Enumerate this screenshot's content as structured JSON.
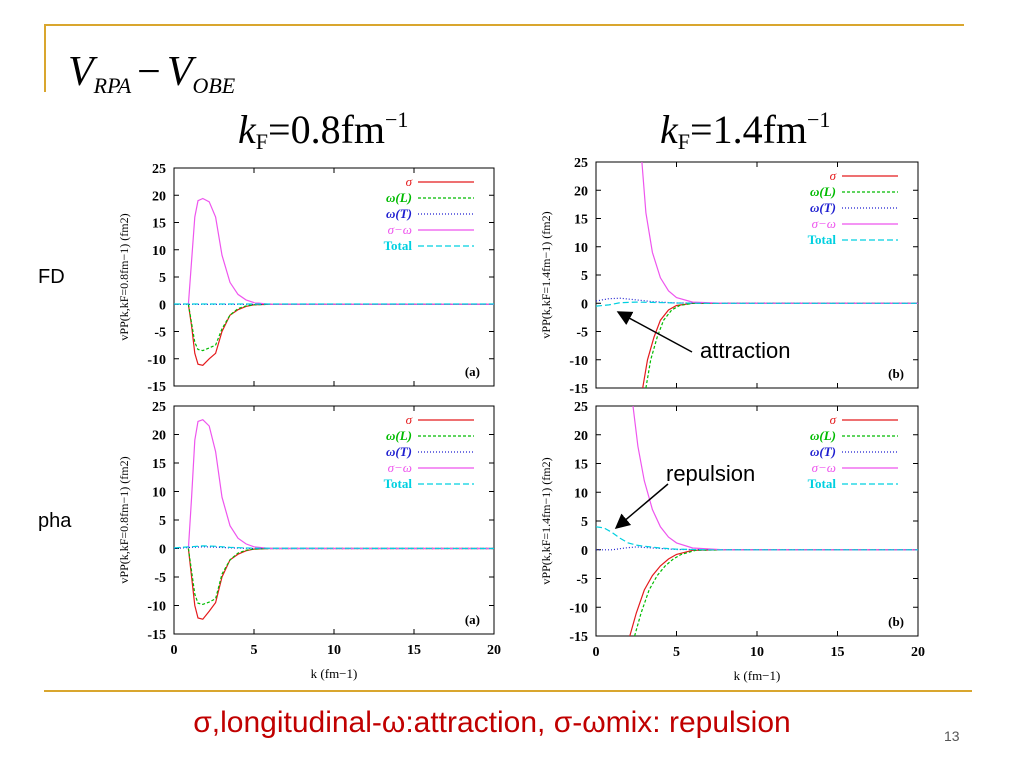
{
  "slide": {
    "title_main_1": "V",
    "title_sub_1": "RPA",
    "title_minus": "−",
    "title_main_2": "V",
    "title_sub_2": "OBE",
    "col_headers": [
      {
        "k": "k",
        "sub": "F",
        "value": "=0.8fm",
        "sup": "−1"
      },
      {
        "k": "k",
        "sub": "F",
        "value": "=1.4fm",
        "sup": "−1"
      }
    ],
    "row_labels": [
      "FD",
      "pha"
    ],
    "annotation_attraction": "attraction",
    "annotation_repulsion": "repulsion",
    "footer": "σ,longitudinal-ω:attraction, σ-ωmix: repulsion",
    "page_number": "13"
  },
  "chart_data": [
    {
      "type": "line",
      "panel_label": "(a)",
      "ylabel": "vPP(k,kF=0.8fm−1) (fm2)",
      "xlabel": "k (fm−1)",
      "xlim": [
        0,
        20
      ],
      "ylim": [
        -15,
        25
      ],
      "yticks": [
        "25",
        "20",
        "15",
        "10",
        "5",
        "0",
        "-5",
        "-10",
        "-15"
      ],
      "xticks": [
        "0",
        "5",
        "10",
        "15",
        "20"
      ],
      "series": [
        {
          "name": "σ",
          "color": "#e41a1c",
          "dash": "",
          "x": [
            0.9,
            1.1,
            1.3,
            1.5,
            1.8,
            2.2,
            2.6,
            3,
            3.5,
            4,
            4.5,
            5,
            6,
            8,
            12,
            20
          ],
          "y": [
            0,
            -4,
            -9,
            -11,
            -11.2,
            -10,
            -9,
            -5,
            -2,
            -1,
            -0.4,
            -0.1,
            0,
            0,
            0,
            0
          ]
        },
        {
          "name": "ω(L)",
          "color": "#00bb00",
          "dash": "3,2",
          "x": [
            0.9,
            1.1,
            1.3,
            1.5,
            1.8,
            2.2,
            2.6,
            3,
            3.5,
            4,
            4.5,
            5,
            6,
            8,
            12,
            20
          ],
          "y": [
            0,
            -3.5,
            -7,
            -8.3,
            -8.5,
            -8,
            -7.5,
            -4.5,
            -2,
            -0.8,
            -0.3,
            -0.1,
            0,
            0,
            0,
            0
          ]
        },
        {
          "name": "ω(T)",
          "color": "#1f1fd0",
          "dash": "1,2",
          "x": [
            0,
            20
          ],
          "y": [
            0,
            0
          ]
        },
        {
          "name": "σ−ω",
          "color": "#ee55ee",
          "dash": "",
          "x": [
            0.9,
            1.1,
            1.3,
            1.5,
            1.8,
            2.2,
            2.6,
            3,
            3.5,
            4,
            4.5,
            5,
            6,
            8,
            12,
            20
          ],
          "y": [
            0,
            8,
            16,
            19,
            19.4,
            18.8,
            16,
            9,
            4,
            1.8,
            0.8,
            0.3,
            0,
            0,
            0,
            0
          ]
        },
        {
          "name": "Total",
          "color": "#00d0e0",
          "dash": "6,3",
          "x": [
            0,
            20
          ],
          "y": [
            0.05,
            0.05
          ]
        }
      ]
    },
    {
      "type": "line",
      "panel_label": "(b)",
      "ylabel": "vPP(k,kF=1.4fm−1) (fm2)",
      "xlabel": "k (fm−1)",
      "xlim": [
        0,
        20
      ],
      "ylim": [
        -15,
        25
      ],
      "yticks": [
        "25",
        "20",
        "15",
        "10",
        "5",
        "0",
        "-5",
        "-10",
        "-15"
      ],
      "xticks": [
        "0",
        "5",
        "10",
        "15",
        "20"
      ],
      "series": [
        {
          "name": "σ",
          "color": "#e41a1c",
          "dash": "",
          "x": [
            2.9,
            3.2,
            3.6,
            4,
            4.5,
            5,
            6,
            8,
            12,
            20
          ],
          "y": [
            -15,
            -10,
            -6,
            -3,
            -1.2,
            -0.4,
            0,
            0,
            0,
            0
          ]
        },
        {
          "name": "ω(L)",
          "color": "#00bb00",
          "dash": "3,2",
          "x": [
            3.1,
            3.4,
            3.8,
            4.2,
            4.7,
            5.2,
            6,
            8,
            12,
            20
          ],
          "y": [
            -15,
            -10,
            -6,
            -3,
            -1.2,
            -0.4,
            0,
            0,
            0,
            0
          ]
        },
        {
          "name": "ω(T)",
          "color": "#1f1fd0",
          "dash": "1,2",
          "x": [
            0,
            0.8,
            1.5,
            2.5,
            3.5,
            5,
            20
          ],
          "y": [
            0.4,
            0.8,
            0.9,
            0.6,
            0.3,
            0.05,
            0
          ]
        },
        {
          "name": "σ−ω",
          "color": "#ee55ee",
          "dash": "",
          "x": [
            2.85,
            3.1,
            3.5,
            4,
            4.5,
            5,
            6,
            8,
            12,
            20
          ],
          "y": [
            25,
            16,
            9,
            4.5,
            2.2,
            1,
            0.2,
            0,
            0,
            0
          ]
        },
        {
          "name": "Total",
          "color": "#00d0e0",
          "dash": "6,3",
          "x": [
            0,
            0.8,
            1.5,
            2.5,
            3.5,
            5,
            7,
            20
          ],
          "y": [
            -0.5,
            -0.3,
            0.1,
            0.2,
            0.15,
            0.05,
            0,
            0
          ]
        }
      ]
    },
    {
      "type": "line",
      "panel_label": "(a)",
      "ylabel": "vPP(k,kF=0.8fm−1) (fm2)",
      "xlabel": "k (fm−1)",
      "xlim": [
        0,
        20
      ],
      "ylim": [
        -15,
        25
      ],
      "yticks": [
        "25",
        "20",
        "15",
        "10",
        "5",
        "0",
        "-5",
        "-10",
        "-15"
      ],
      "xticks": [
        "0",
        "5",
        "10",
        "15",
        "20"
      ],
      "series": [
        {
          "name": "σ",
          "color": "#e41a1c",
          "dash": "",
          "x": [
            0.9,
            1.1,
            1.3,
            1.5,
            1.8,
            2.2,
            2.6,
            3,
            3.5,
            4,
            4.5,
            5,
            6,
            8,
            12,
            20
          ],
          "y": [
            0,
            -5,
            -10,
            -12.2,
            -12.4,
            -11,
            -9.5,
            -5,
            -2,
            -1,
            -0.4,
            -0.1,
            0,
            0,
            0,
            0
          ]
        },
        {
          "name": "ω(L)",
          "color": "#00bb00",
          "dash": "3,2",
          "x": [
            0.9,
            1.1,
            1.3,
            1.5,
            1.8,
            2.2,
            2.6,
            3,
            3.5,
            4,
            4.5,
            5,
            6,
            8,
            12,
            20
          ],
          "y": [
            0,
            -4,
            -8,
            -9.6,
            -9.8,
            -9.4,
            -8.8,
            -4.5,
            -2,
            -0.8,
            -0.3,
            -0.1,
            0,
            0,
            0,
            0
          ]
        },
        {
          "name": "ω(T)",
          "color": "#1f1fd0",
          "dash": "1,2",
          "x": [
            0,
            1,
            1.8,
            2.5,
            3.5,
            5,
            20
          ],
          "y": [
            0,
            0.2,
            0.3,
            0.25,
            0.1,
            0,
            0
          ]
        },
        {
          "name": "σ−ω",
          "color": "#ee55ee",
          "dash": "",
          "x": [
            0.9,
            1.1,
            1.3,
            1.5,
            1.8,
            2.2,
            2.6,
            3,
            3.5,
            4,
            4.5,
            5,
            6,
            8,
            12,
            20
          ],
          "y": [
            0,
            9,
            19,
            22.3,
            22.6,
            21.5,
            17,
            9,
            4,
            1.8,
            0.8,
            0.3,
            0,
            0,
            0,
            0
          ]
        },
        {
          "name": "Total",
          "color": "#00d0e0",
          "dash": "6,3",
          "x": [
            0,
            1,
            1.8,
            2.5,
            3.5,
            5,
            20
          ],
          "y": [
            0.1,
            0.3,
            0.45,
            0.4,
            0.2,
            0.05,
            0
          ]
        }
      ]
    },
    {
      "type": "line",
      "panel_label": "(b)",
      "ylabel": "vPP(k,kF=1.4fm−1) (fm2)",
      "xlabel": "k (fm−1)",
      "xlim": [
        0,
        20
      ],
      "ylim": [
        -15,
        25
      ],
      "yticks": [
        "25",
        "20",
        "15",
        "10",
        "5",
        "0",
        "-5",
        "-10",
        "-15"
      ],
      "xticks": [
        "0",
        "5",
        "10",
        "15",
        "20"
      ],
      "series": [
        {
          "name": "σ",
          "color": "#e41a1c",
          "dash": "",
          "x": [
            2.1,
            2.5,
            3,
            3.5,
            4,
            4.5,
            5,
            6,
            8,
            12,
            20
          ],
          "y": [
            -15,
            -11,
            -7,
            -4.5,
            -2.8,
            -1.6,
            -0.8,
            -0.1,
            0,
            0,
            0
          ]
        },
        {
          "name": "ω(L)",
          "color": "#00bb00",
          "dash": "3,2",
          "x": [
            2.4,
            2.8,
            3.3,
            3.8,
            4.3,
            4.8,
            5.3,
            6.2,
            8,
            12,
            20
          ],
          "y": [
            -15,
            -11,
            -7,
            -4.5,
            -2.8,
            -1.6,
            -0.8,
            -0.1,
            0,
            0,
            0
          ]
        },
        {
          "name": "ω(T)",
          "color": "#1f1fd0",
          "dash": "1,2",
          "x": [
            0,
            1,
            1.8,
            2.5,
            3.5,
            5,
            20
          ],
          "y": [
            0,
            0,
            0.3,
            0.5,
            0.3,
            0.05,
            0
          ]
        },
        {
          "name": "σ−ω",
          "color": "#ee55ee",
          "dash": "",
          "x": [
            2.3,
            2.6,
            3,
            3.5,
            4,
            4.5,
            5,
            6,
            8,
            12,
            20
          ],
          "y": [
            25,
            18,
            12,
            7,
            4,
            2.2,
            1.2,
            0.3,
            0,
            0,
            0
          ]
        },
        {
          "name": "Total",
          "color": "#00d0e0",
          "dash": "6,3",
          "x": [
            0,
            0.5,
            1,
            1.5,
            2,
            2.5,
            3,
            4,
            5,
            7,
            20
          ],
          "y": [
            4,
            3.8,
            3,
            2,
            1.2,
            0.8,
            0.6,
            0.3,
            0.1,
            0,
            0
          ]
        }
      ]
    }
  ]
}
